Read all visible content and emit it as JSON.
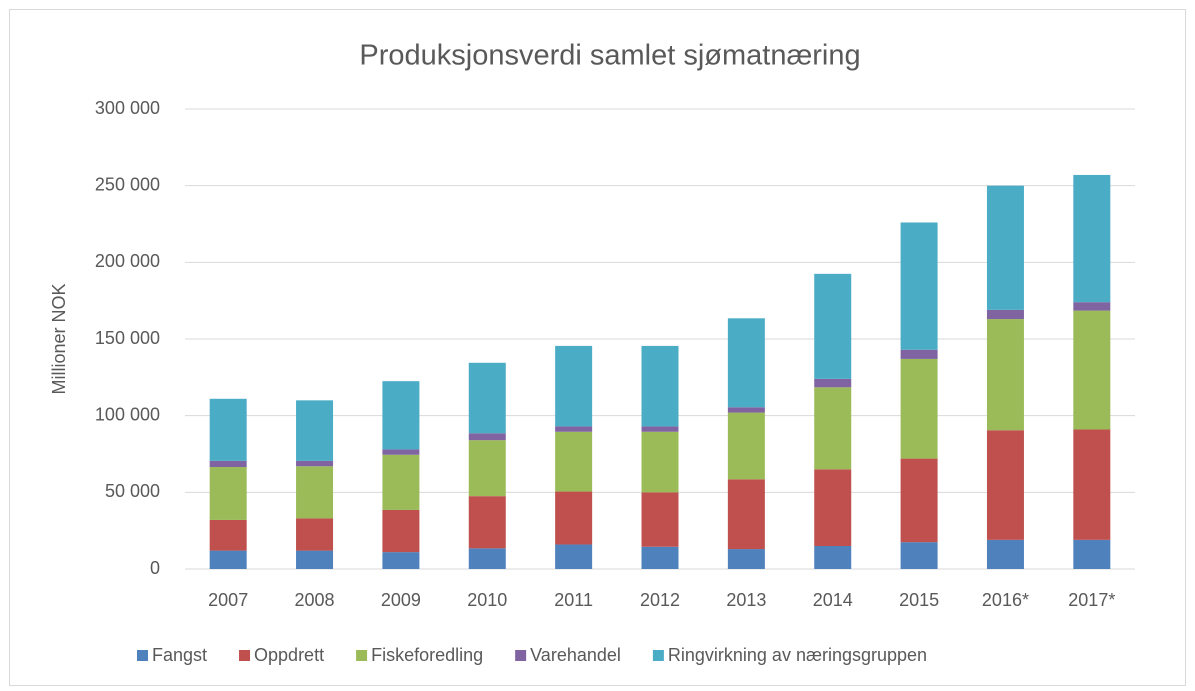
{
  "chart_data": {
    "type": "stacked_bar",
    "title": "Produksjonsverdi samlet sjømatnæring",
    "y_label": "Millioner NOK",
    "categories": [
      "2007",
      "2008",
      "2009",
      "2010",
      "2011",
      "2012",
      "2013",
      "2014",
      "2015",
      "2016*",
      "2017*"
    ],
    "series": [
      {
        "name": "Fangst",
        "color": "#4f81bd",
        "values": [
          12000,
          12000,
          11000,
          13500,
          16000,
          14500,
          13000,
          15000,
          17500,
          19000,
          19000
        ]
      },
      {
        "name": "Oppdrett",
        "color": "#c0504d",
        "values": [
          20000,
          21000,
          27500,
          34000,
          34500,
          35500,
          45500,
          50000,
          54500,
          71500,
          72000
        ]
      },
      {
        "name": "Fiskeforedling",
        "color": "#9bbb59",
        "values": [
          34500,
          34000,
          36000,
          36500,
          39000,
          39500,
          43500,
          53500,
          65000,
          72500,
          77500
        ]
      },
      {
        "name": "Varehandel",
        "color": "#8064a2",
        "values": [
          4000,
          3500,
          3500,
          4500,
          3500,
          3500,
          3500,
          5500,
          6000,
          6000,
          5500
        ]
      },
      {
        "name": "Ringvirkning av næringsgruppen",
        "color": "#4bacc6",
        "values": [
          40500,
          39500,
          44500,
          46000,
          52500,
          52500,
          58000,
          68500,
          83000,
          81000,
          83000
        ]
      }
    ],
    "ylim": [
      0,
      300000
    ],
    "yticks": [
      0,
      {
        "value": 50000,
        "label": "50 000"
      },
      {
        "value": 100000,
        "label": "100 000"
      },
      {
        "value": 150000,
        "label": "150 000"
      },
      {
        "value": 200000,
        "label": "200 000"
      },
      {
        "value": 250000,
        "label": "250 000"
      },
      {
        "value": 300000,
        "label": "300 000"
      }
    ],
    "grid": true,
    "legend": "bottom"
  }
}
